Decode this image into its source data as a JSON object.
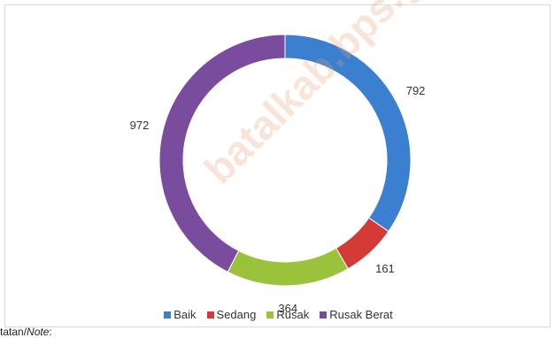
{
  "chart_data": {
    "type": "pie",
    "categories": [
      "Baik",
      "Sedang",
      "Rusak",
      "Rusak Berat"
    ],
    "values": [
      792,
      161,
      364,
      972
    ],
    "data_labels": [
      "792",
      "161",
      "364",
      "972"
    ],
    "colors": [
      "#3b7fd0",
      "#d43a36",
      "#9ac33b",
      "#7a4c9e"
    ],
    "donut": true,
    "legend_position": "bottom"
  },
  "note": {
    "prefix": "tatan/",
    "italic": "Note",
    "suffix": ":"
  },
  "watermark": "batalkab.bps.go.id"
}
